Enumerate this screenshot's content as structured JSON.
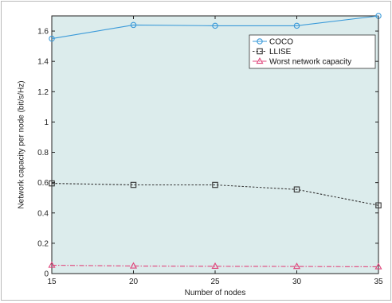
{
  "chart_data": {
    "type": "line",
    "title": "",
    "xlabel": "Number of nodes",
    "ylabel": "Network capacity per node (bit/s/Hz)",
    "xlim": [
      15,
      35
    ],
    "ylim": [
      0,
      1.7
    ],
    "x": [
      15,
      20,
      25,
      30,
      35
    ],
    "xticks": [
      "15",
      "20",
      "25",
      "30",
      "35"
    ],
    "yticks": [
      "0",
      "0.2",
      "0.4",
      "0.6",
      "0.8",
      "1",
      "1.2",
      "1.4",
      "1.6"
    ],
    "grid": false,
    "legend_position": "top-right",
    "plot_background": "#dcecec",
    "series": [
      {
        "name": "COCO",
        "values": [
          1.55,
          1.64,
          1.635,
          1.635,
          1.7
        ],
        "color": "#3a9ad9",
        "marker": "circle",
        "dash": "solid"
      },
      {
        "name": "LLISE",
        "values": [
          0.595,
          0.585,
          0.585,
          0.555,
          0.45
        ],
        "color": "#333333",
        "marker": "square",
        "dash": "dotted"
      },
      {
        "name": "Worst network capacity",
        "values": [
          0.055,
          0.05,
          0.048,
          0.047,
          0.045
        ],
        "color": "#e0457b",
        "marker": "triangle",
        "dash": "dashdot"
      }
    ]
  }
}
